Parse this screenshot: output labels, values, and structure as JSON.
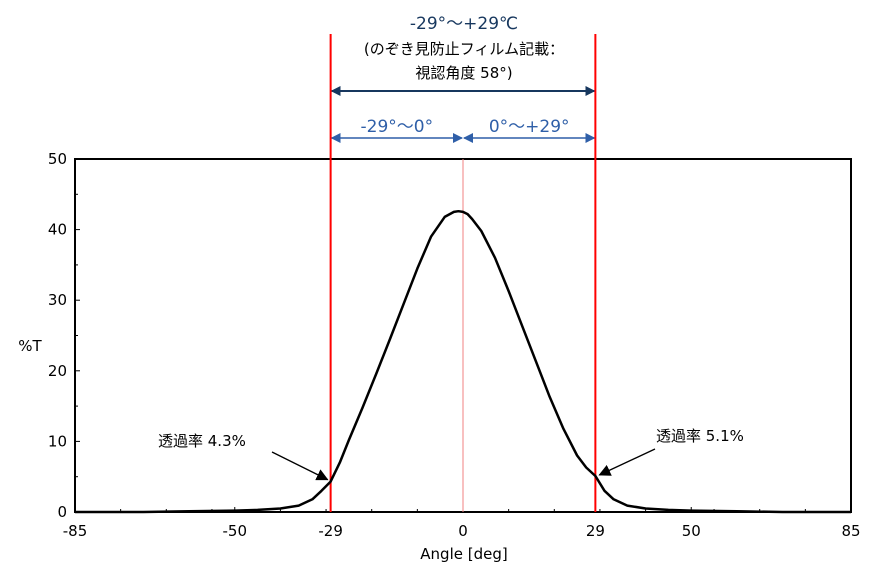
{
  "chart_data": {
    "type": "line",
    "xlabel": "Angle [deg]",
    "ylabel": "%T",
    "xlim": [
      -85,
      85
    ],
    "ylim": [
      0,
      50
    ],
    "x_ticks": [
      -85,
      -50,
      -29,
      0,
      29,
      50,
      85
    ],
    "y_ticks": [
      0,
      10,
      20,
      30,
      40,
      50
    ],
    "grid": false,
    "series": [
      {
        "color": "#000000",
        "x": [
          -85,
          -70,
          -60,
          -50,
          -45,
          -40,
          -36,
          -33,
          -31,
          -29,
          -27,
          -25,
          -22,
          -19,
          -16,
          -13,
          -10,
          -7,
          -4,
          -2,
          -1,
          0,
          1,
          2,
          4,
          7,
          10,
          13,
          16,
          19,
          22,
          25,
          27,
          29,
          31,
          33,
          36,
          40,
          45,
          50,
          60,
          70,
          85
        ],
        "y": [
          0,
          0,
          0.1,
          0.2,
          0.3,
          0.5,
          0.9,
          1.8,
          3.0,
          4.3,
          7.0,
          10.2,
          14.8,
          19.6,
          24.5,
          29.5,
          34.5,
          39.0,
          41.8,
          42.5,
          42.6,
          42.5,
          42.2,
          41.5,
          39.8,
          36.0,
          31.3,
          26.3,
          21.3,
          16.3,
          11.8,
          8.0,
          6.3,
          5.1,
          3.0,
          1.8,
          0.9,
          0.5,
          0.3,
          0.2,
          0.1,
          0,
          0
        ]
      }
    ],
    "vertical_lines": [
      {
        "x": -29,
        "color": "#ff0000"
      },
      {
        "x": 0,
        "color": "#f08080"
      },
      {
        "x": 29,
        "color": "#ff0000"
      }
    ],
    "annotations": {
      "title": "-29°～+29℃",
      "subtitle_line1": "(のぞき見防止フィルム記載：",
      "subtitle_line2": "視認角度 58°)",
      "range_left": "-29°～0°",
      "range_right": "0°～+29°",
      "callout_left": "透過率 4.3%",
      "callout_right": "透過率 5.1%",
      "callout_left_target": {
        "x": -29,
        "y": 4.3
      },
      "callout_right_target": {
        "x": 29,
        "y": 5.1
      }
    },
    "colors": {
      "curve": "#000000",
      "boundary": "#ff0000",
      "center": "#f08080",
      "outer_arrow": "#17375e",
      "inner_arrow": "#2f5fa8"
    }
  }
}
